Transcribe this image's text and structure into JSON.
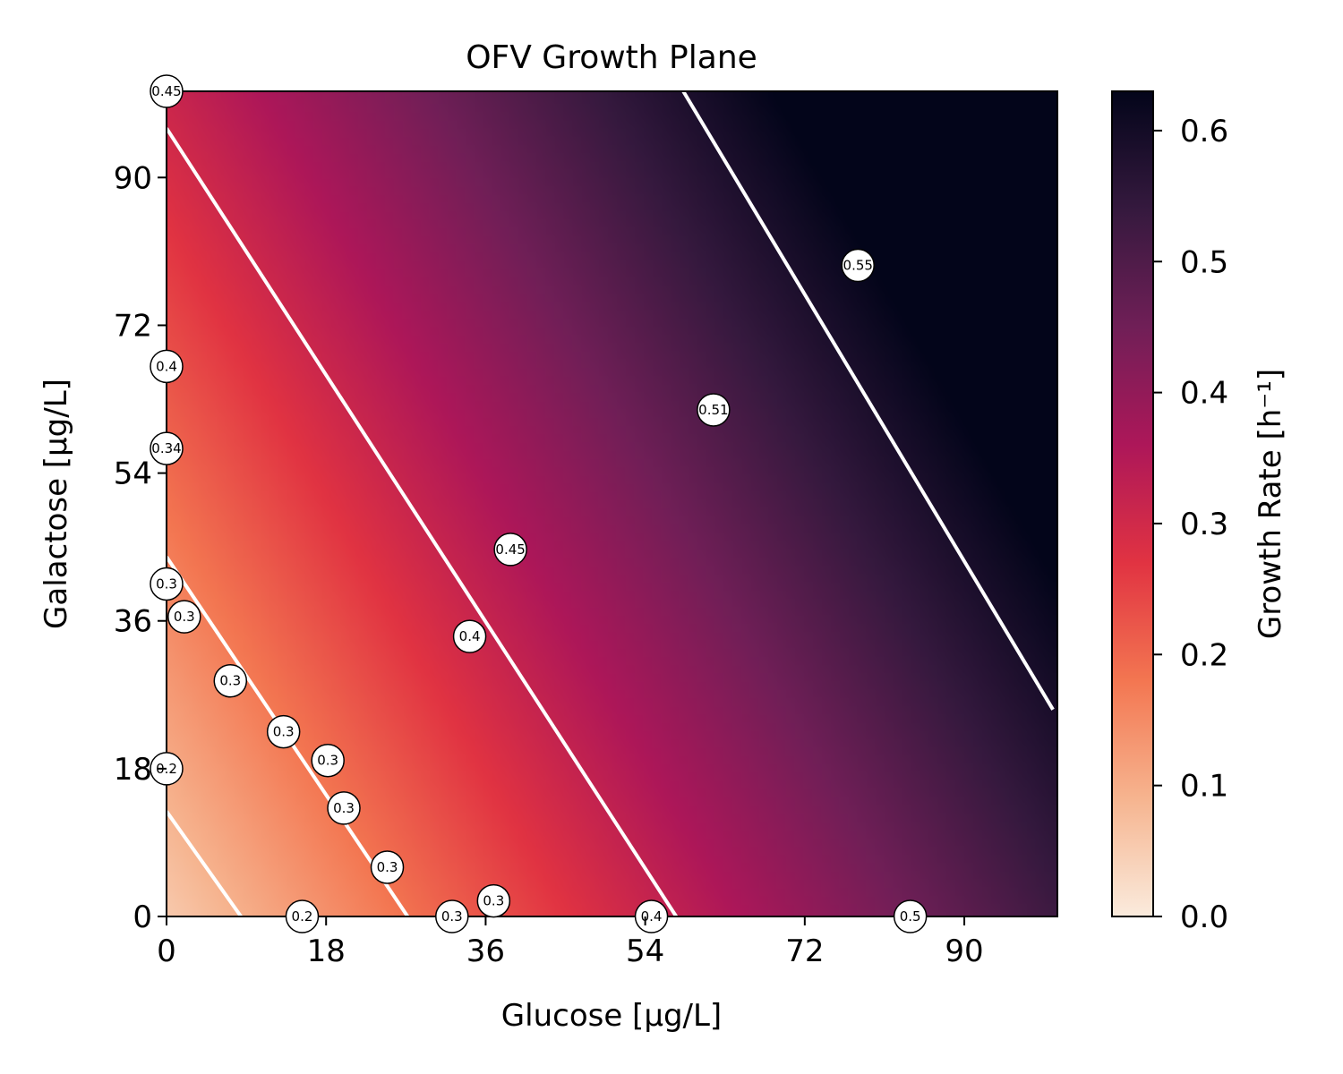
{
  "chart_data": {
    "type": "heatmap",
    "title": "OFV Growth Plane",
    "xlabel": "Glucose [μg/L]",
    "ylabel": "Galactose [μg/L]",
    "colorbar_label": "Growth Rate [h⁻¹]",
    "xlim": [
      0,
      100.5
    ],
    "ylim": [
      0,
      100.5
    ],
    "xticks": [
      0,
      18,
      36,
      54,
      72,
      90
    ],
    "yticks": [
      0,
      18,
      36,
      54,
      72,
      90
    ],
    "xtick_labels": [
      "0",
      "18",
      "36",
      "54",
      "72",
      "90"
    ],
    "ytick_labels": [
      "0",
      "18",
      "36",
      "54",
      "72",
      "90"
    ],
    "colorbar_range": [
      0.0,
      0.63
    ],
    "colorbar_ticks": [
      0.0,
      0.1,
      0.2,
      0.3,
      0.4,
      0.5,
      0.6
    ],
    "colorbar_tick_labels": [
      "0.0",
      "0.1",
      "0.2",
      "0.3",
      "0.4",
      "0.5",
      "0.6"
    ],
    "colormap": "rocket_r",
    "colormap_stops": [
      "#faebdd",
      "#f6b48f",
      "#f37651",
      "#e13342",
      "#ad1759",
      "#701f57",
      "#35193e",
      "#03051a"
    ],
    "contour_lines": [
      {
        "level": 0.2,
        "points": [
          [
            0,
            12.8
          ],
          [
            8.4,
            0
          ]
        ]
      },
      {
        "level": 0.3,
        "points": [
          [
            0,
            43.8
          ],
          [
            27.2,
            0
          ]
        ]
      },
      {
        "level": 0.4,
        "points": [
          [
            0,
            96
          ],
          [
            57.5,
            0
          ]
        ]
      },
      {
        "level": 0.5,
        "points": [
          [
            58.3,
            100.5
          ],
          [
            100,
            25.2
          ]
        ]
      }
    ],
    "contour_color": "#ffffff",
    "annotations": [
      {
        "x": 0,
        "y": 100.5,
        "label": "0.45"
      },
      {
        "x": 0,
        "y": 67,
        "label": "0.4"
      },
      {
        "x": 0,
        "y": 57,
        "label": "0.34"
      },
      {
        "x": 0,
        "y": 40.5,
        "label": "0.3"
      },
      {
        "x": 2,
        "y": 36.5,
        "label": "0.3"
      },
      {
        "x": 7.2,
        "y": 28.7,
        "label": "0.3"
      },
      {
        "x": 13.2,
        "y": 22.5,
        "label": "0.3"
      },
      {
        "x": 18.2,
        "y": 19,
        "label": "0.3"
      },
      {
        "x": 20,
        "y": 13.2,
        "label": "0.3"
      },
      {
        "x": 24.9,
        "y": 6,
        "label": "0.3"
      },
      {
        "x": 0,
        "y": 18,
        "label": "0.2"
      },
      {
        "x": 15.3,
        "y": 0,
        "label": "0.2"
      },
      {
        "x": 32.2,
        "y": 0,
        "label": "0.3"
      },
      {
        "x": 36.9,
        "y": 1.9,
        "label": "0.3"
      },
      {
        "x": 34.2,
        "y": 34.1,
        "label": "0.4"
      },
      {
        "x": 38.8,
        "y": 44.7,
        "label": "0.45"
      },
      {
        "x": 54.7,
        "y": 0,
        "label": "0.4"
      },
      {
        "x": 61.7,
        "y": 61.7,
        "label": "0.51"
      },
      {
        "x": 78,
        "y": 79.3,
        "label": "0.55"
      },
      {
        "x": 83.9,
        "y": 0,
        "label": "0.5"
      }
    ]
  }
}
